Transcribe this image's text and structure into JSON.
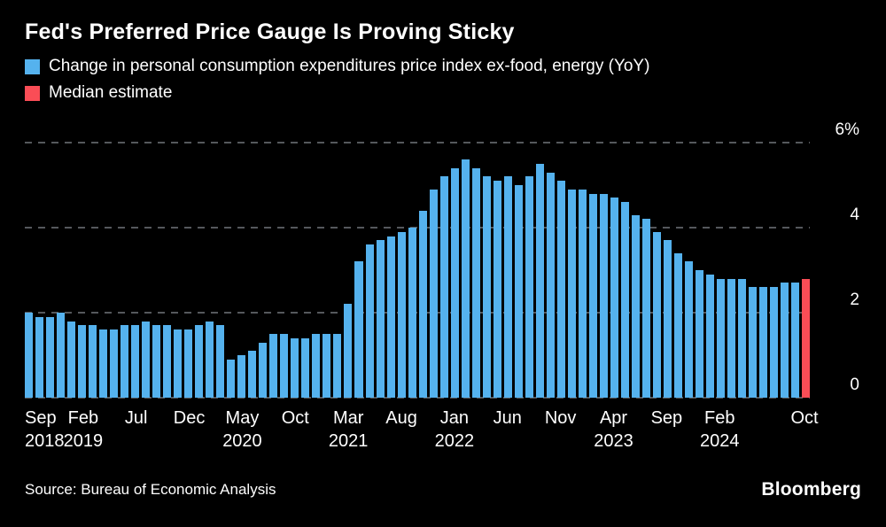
{
  "colors": {
    "background": "#000000",
    "text": "#ffffff",
    "grid": "#55585c",
    "bar_blue": "#55b2ee",
    "median_red": "#fa4d56"
  },
  "footer": {
    "source": "Source: Bureau of Economic Analysis",
    "brand": "Bloomberg"
  },
  "chart_data": {
    "type": "bar",
    "title": "Fed's Preferred Price Gauge Is Proving Sticky",
    "legend": [
      {
        "label": "Change in personal consumption expenditures price index ex-food, energy (YoY)",
        "color": "#55b2ee"
      },
      {
        "label": "Median estimate",
        "color": "#fa4d56"
      }
    ],
    "ylim": [
      0,
      6
    ],
    "yticks": [
      {
        "value": 0,
        "label": "0"
      },
      {
        "value": 2,
        "label": "2"
      },
      {
        "value": 4,
        "label": "4"
      },
      {
        "value": 6,
        "label": "6%"
      }
    ],
    "x": [
      "Sep 2018",
      "Oct 2018",
      "Nov 2018",
      "Dec 2018",
      "Jan 2019",
      "Feb 2019",
      "Mar 2019",
      "Apr 2019",
      "May 2019",
      "Jun 2019",
      "Jul 2019",
      "Aug 2019",
      "Sep 2019",
      "Oct 2019",
      "Nov 2019",
      "Dec 2019",
      "Jan 2020",
      "Feb 2020",
      "Mar 2020",
      "Apr 2020",
      "May 2020",
      "Jun 2020",
      "Jul 2020",
      "Aug 2020",
      "Sep 2020",
      "Oct 2020",
      "Nov 2020",
      "Dec 2020",
      "Jan 2021",
      "Feb 2021",
      "Mar 2021",
      "Apr 2021",
      "May 2021",
      "Jun 2021",
      "Jul 2021",
      "Aug 2021",
      "Sep 2021",
      "Oct 2021",
      "Nov 2021",
      "Dec 2021",
      "Jan 2022",
      "Feb 2022",
      "Mar 2022",
      "Apr 2022",
      "May 2022",
      "Jun 2022",
      "Jul 2022",
      "Aug 2022",
      "Sep 2022",
      "Oct 2022",
      "Nov 2022",
      "Dec 2022",
      "Jan 2023",
      "Feb 2023",
      "Mar 2023",
      "Apr 2023",
      "May 2023",
      "Jun 2023",
      "Jul 2023",
      "Aug 2023",
      "Sep 2023",
      "Oct 2023",
      "Nov 2023",
      "Dec 2023",
      "Jan 2024",
      "Feb 2024",
      "Mar 2024",
      "Apr 2024",
      "May 2024",
      "Jun 2024",
      "Jul 2024",
      "Aug 2024",
      "Sep 2024",
      "Oct 2024"
    ],
    "values": [
      2.0,
      1.9,
      1.9,
      2.0,
      1.8,
      1.7,
      1.7,
      1.6,
      1.6,
      1.7,
      1.7,
      1.8,
      1.7,
      1.7,
      1.6,
      1.6,
      1.7,
      1.8,
      1.7,
      0.9,
      1.0,
      1.1,
      1.3,
      1.5,
      1.5,
      1.4,
      1.4,
      1.5,
      1.5,
      1.5,
      2.2,
      3.2,
      3.6,
      3.7,
      3.8,
      3.9,
      4.0,
      4.4,
      4.9,
      5.2,
      5.4,
      5.6,
      5.4,
      5.2,
      5.1,
      5.2,
      5.0,
      5.2,
      5.5,
      5.3,
      5.1,
      4.9,
      4.9,
      4.8,
      4.8,
      4.7,
      4.6,
      4.3,
      4.2,
      3.9,
      3.7,
      3.4,
      3.2,
      3.0,
      2.9,
      2.8,
      2.8,
      2.8,
      2.6,
      2.6,
      2.6,
      2.7,
      2.7,
      2.8
    ],
    "median_bar_index": 73,
    "xticks": [
      {
        "index": 0,
        "month": "Sep",
        "year": "2018"
      },
      {
        "index": 5,
        "month": "Feb",
        "year": "2019"
      },
      {
        "index": 10,
        "month": "Jul",
        "year": ""
      },
      {
        "index": 15,
        "month": "Dec",
        "year": ""
      },
      {
        "index": 20,
        "month": "May",
        "year": "2020"
      },
      {
        "index": 25,
        "month": "Oct",
        "year": ""
      },
      {
        "index": 30,
        "month": "Mar",
        "year": "2021"
      },
      {
        "index": 35,
        "month": "Aug",
        "year": ""
      },
      {
        "index": 40,
        "month": "Jan",
        "year": "2022"
      },
      {
        "index": 45,
        "month": "Jun",
        "year": ""
      },
      {
        "index": 50,
        "month": "Nov",
        "year": ""
      },
      {
        "index": 55,
        "month": "Apr",
        "year": "2023"
      },
      {
        "index": 60,
        "month": "Sep",
        "year": ""
      },
      {
        "index": 65,
        "month": "Feb",
        "year": "2024"
      },
      {
        "index": 73,
        "month": "Oct",
        "year": ""
      }
    ]
  }
}
